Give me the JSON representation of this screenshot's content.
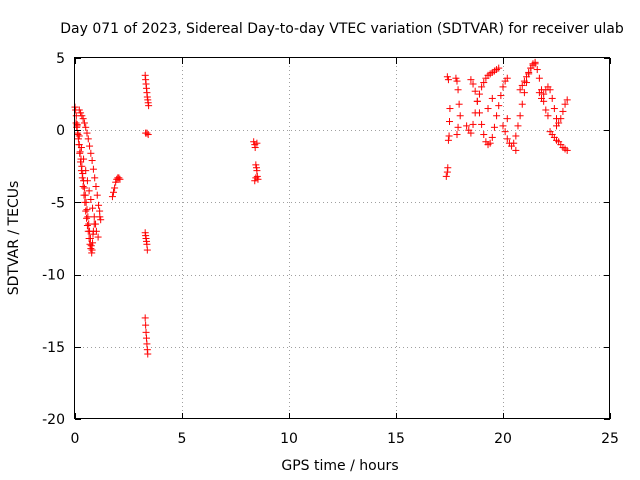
{
  "chart_data": {
    "type": "scatter",
    "title": "Day 071 of 2023, Sidereal Day-to-day VTEC variation (SDTVAR) for receiver ulab",
    "xlabel": "GPS time / hours",
    "ylabel": "SDTVAR / TECUs",
    "xlim": [
      0,
      25
    ],
    "ylim": [
      -20,
      5
    ],
    "grid": true,
    "marker": "+",
    "color": "#ff0000",
    "x_ticks": [
      0,
      5,
      10,
      15,
      20,
      25
    ],
    "x_tick_labels": [
      "0",
      "5",
      "10",
      "15",
      "20",
      "25"
    ],
    "y_ticks": [
      5,
      0,
      -5,
      -10,
      -15,
      -20
    ],
    "y_tick_labels": [
      "5",
      "0",
      "-5",
      "-10",
      "-15",
      "-20"
    ],
    "series": [
      {
        "name": "SDTVAR",
        "x": [
          0.0,
          0.03,
          0.06,
          0.1,
          0.14,
          0.18,
          0.22,
          0.26,
          0.3,
          0.34,
          0.38,
          0.42,
          0.46,
          0.5,
          0.54,
          0.58,
          0.62,
          0.66,
          0.7,
          0.74,
          0.78,
          0.82,
          0.86,
          0.9,
          0.05,
          0.08,
          0.12,
          0.16,
          0.2,
          0.24,
          0.28,
          0.32,
          0.36,
          0.4,
          0.44,
          0.48,
          0.52,
          0.56,
          0.6,
          0.64,
          0.68,
          0.72,
          0.76,
          0.8,
          0.84,
          0.2,
          0.26,
          0.32,
          0.38,
          0.44,
          0.5,
          0.56,
          0.62,
          0.68,
          0.74,
          0.8,
          0.86,
          0.92,
          0.98,
          1.04,
          1.1,
          1.16,
          0.1,
          0.2,
          0.3,
          0.4,
          0.5,
          0.58,
          0.66,
          0.74,
          0.82,
          0.9,
          0.96,
          1.0,
          1.08,
          1.15,
          1.2,
          1.75,
          1.8,
          1.85,
          1.9,
          1.95,
          2.0,
          2.05,
          2.1,
          3.28,
          3.3,
          3.32,
          3.34,
          3.36,
          3.38,
          3.4,
          3.42,
          3.44,
          3.3,
          3.36,
          3.42,
          3.28,
          3.3,
          3.32,
          3.34,
          3.36,
          3.38,
          3.28,
          3.3,
          3.32,
          3.34,
          3.36,
          3.38,
          3.4,
          8.35,
          8.4,
          8.42,
          8.45,
          8.48,
          8.5,
          8.52,
          8.55,
          8.4,
          8.45,
          8.5,
          17.35,
          17.4,
          17.42,
          17.45,
          17.48,
          17.5,
          17.52,
          17.4,
          17.45,
          17.8,
          17.85,
          17.9,
          17.95,
          18.0,
          17.85,
          17.9,
          18.3,
          18.4,
          18.5,
          18.6,
          18.7,
          18.8,
          18.9,
          19.0,
          19.1,
          19.2,
          19.3,
          19.4,
          19.5,
          19.6,
          19.7,
          19.8,
          18.5,
          18.6,
          18.7,
          18.8,
          18.9,
          19.0,
          19.1,
          19.2,
          19.3,
          19.4,
          19.5,
          19.6,
          19.7,
          19.8,
          19.9,
          20.0,
          20.1,
          20.2,
          20.0,
          20.1,
          20.2,
          20.3,
          20.4,
          20.5,
          20.6,
          20.7,
          20.8,
          20.9,
          21.0,
          21.1,
          21.2,
          21.3,
          21.4,
          21.5,
          20.8,
          20.9,
          21.0,
          21.1,
          21.2,
          21.3,
          21.4,
          21.5,
          21.6,
          21.7,
          21.8,
          21.9,
          22.0,
          22.1,
          21.8,
          21.9,
          22.0,
          22.1,
          22.2,
          22.3,
          22.4,
          22.5,
          22.6,
          22.7,
          22.8,
          22.9,
          23.0,
          22.2,
          22.3,
          22.4,
          22.5,
          22.6,
          22.7,
          22.8,
          22.9,
          23.0,
          20.6,
          19.3,
          19.5,
          20.2,
          21.7,
          22.5
        ],
        "y": [
          1.6,
          1.4,
          1.0,
          0.4,
          -0.3,
          -1.0,
          -1.6,
          -2.2,
          -2.8,
          -3.3,
          -3.9,
          -4.5,
          -5.0,
          -5.6,
          -6.1,
          -6.6,
          -7.0,
          -7.5,
          -7.9,
          -8.2,
          -8.5,
          -7.8,
          -7.0,
          -6.5,
          0.5,
          0.2,
          -0.2,
          -0.6,
          -1.0,
          -1.5,
          -2.0,
          -2.5,
          -3.0,
          -3.5,
          -4.0,
          -4.5,
          -5.0,
          -5.5,
          -6.0,
          -6.5,
          -7.0,
          -7.5,
          -8.0,
          -8.3,
          -7.2,
          1.4,
          1.2,
          1.0,
          0.8,
          0.5,
          0.2,
          -0.2,
          -0.6,
          -1.1,
          -1.6,
          -2.1,
          -2.7,
          -3.3,
          -3.9,
          -4.5,
          -5.2,
          -6.0,
          0.3,
          -0.4,
          -1.2,
          -2.0,
          -2.8,
          -3.5,
          -4.2,
          -4.8,
          -5.4,
          -6.0,
          -6.5,
          -7.0,
          -7.4,
          -5.6,
          -6.2,
          -4.6,
          -4.3,
          -4.0,
          -3.6,
          -3.4,
          -3.3,
          -3.3,
          -3.4,
          3.8,
          3.5,
          3.2,
          2.9,
          2.6,
          2.3,
          2.1,
          1.9,
          1.7,
          -0.2,
          -0.2,
          -0.3,
          -7.1,
          -7.3,
          -7.5,
          -7.7,
          -7.9,
          -8.3,
          -13.0,
          -13.5,
          -14.0,
          -14.4,
          -14.8,
          -15.2,
          -15.5,
          -0.8,
          -1.0,
          -1.2,
          -2.4,
          -2.6,
          -2.8,
          -3.2,
          -3.4,
          -3.5,
          -3.3,
          -0.9,
          -3.2,
          -2.9,
          -2.6,
          -0.7,
          -0.4,
          0.6,
          1.5,
          3.7,
          3.5,
          3.6,
          3.4,
          2.8,
          1.8,
          1.0,
          -0.3,
          0.2,
          0.3,
          0.0,
          -0.2,
          0.4,
          1.2,
          2.0,
          2.5,
          3.0,
          3.3,
          3.6,
          3.8,
          3.9,
          4.0,
          4.1,
          4.2,
          4.3,
          3.5,
          3.2,
          2.7,
          2.0,
          1.2,
          0.4,
          -0.3,
          -0.8,
          -1.0,
          -0.9,
          -0.5,
          0.2,
          1.0,
          1.7,
          2.4,
          3.0,
          3.4,
          3.6,
          0.3,
          -0.1,
          -0.6,
          -0.9,
          -1.1,
          -0.9,
          -0.4,
          0.3,
          1.0,
          1.8,
          2.6,
          3.3,
          3.9,
          4.3,
          4.6,
          4.7,
          2.8,
          3.1,
          3.4,
          3.7,
          4.0,
          4.3,
          4.5,
          4.6,
          4.2,
          3.6,
          2.8,
          2.0,
          1.4,
          1.0,
          2.2,
          2.5,
          2.8,
          3.0,
          2.8,
          2.2,
          1.5,
          0.8,
          0.5,
          0.8,
          1.3,
          1.8,
          2.1,
          -0.1,
          -0.3,
          -0.5,
          -0.7,
          -0.8,
          -1.0,
          -1.2,
          -1.3,
          -1.4,
          -1.4,
          1.5,
          2.2,
          0.8,
          2.6,
          0.3
        ]
      }
    ]
  }
}
